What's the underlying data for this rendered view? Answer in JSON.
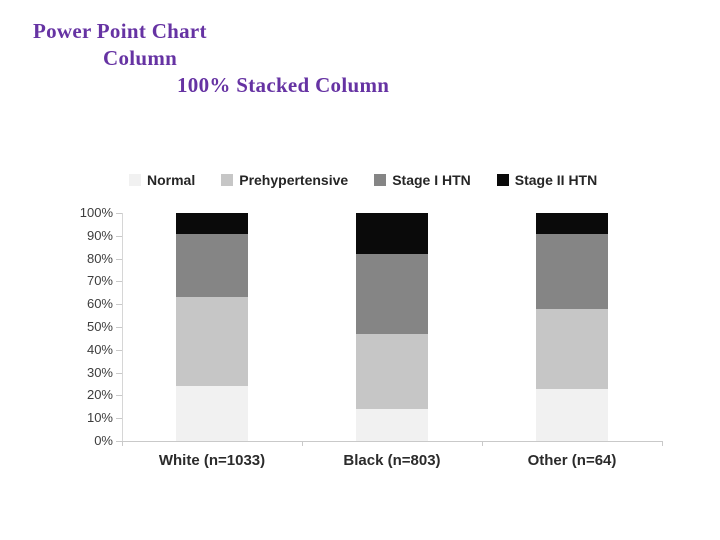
{
  "slide": {
    "title_lines": [
      {
        "text": "Power Point Chart"
      },
      {
        "text": "Column"
      },
      {
        "text": "100% Stacked Column"
      }
    ],
    "title_color": "#6633a3"
  },
  "chart_data": {
    "type": "bar",
    "stacked": true,
    "percent_stacked": true,
    "title": "",
    "xlabel": "",
    "ylabel": "",
    "grid": false,
    "legend_position": "top",
    "ylim": [
      0,
      100
    ],
    "y_ticks": [
      "0%",
      "10%",
      "20%",
      "30%",
      "40%",
      "50%",
      "60%",
      "70%",
      "80%",
      "90%",
      "100%"
    ],
    "categories": [
      "White (n=1033)",
      "Black (n=803)",
      "Other (n=64)"
    ],
    "series": [
      {
        "name": "Normal",
        "color": "#f1f1f1",
        "values": [
          24,
          14,
          23
        ]
      },
      {
        "name": "Prehypertensive",
        "color": "#c6c6c6",
        "values": [
          39,
          33,
          35
        ]
      },
      {
        "name": "Stage I HTN",
        "color": "#858585",
        "values": [
          28,
          35,
          33
        ]
      },
      {
        "name": "Stage II HTN",
        "color": "#0a0a0a",
        "values": [
          9,
          18,
          9
        ]
      }
    ],
    "axis_color": "#c9c9c9"
  }
}
